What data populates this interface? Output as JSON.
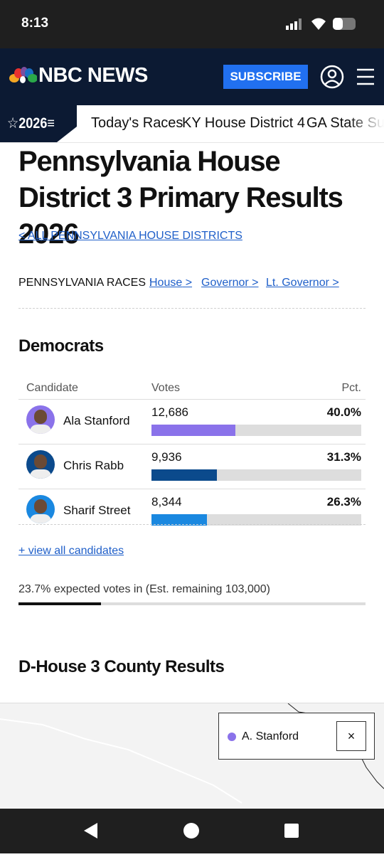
{
  "status_bar": {
    "time": "8:13"
  },
  "header": {
    "logo": "NBC NEWS",
    "subscribe": "SUBSCRIBE"
  },
  "nav": {
    "badge": "2026",
    "items": [
      "Today's Races",
      "KY House District 4",
      "GA State Sup"
    ]
  },
  "title": "Pennsylvania House District 3 Primary Results 2026",
  "back_link": "ALL PENNSYLVANIA HOUSE DISTRICTS",
  "races": {
    "label": "PENNSYLVANIA RACES :",
    "links": [
      "House",
      "Governor",
      "Lt. Governor"
    ]
  },
  "results": {
    "heading": "Democrats",
    "columns": [
      "Candidate",
      "Votes",
      "Pct."
    ],
    "candidates": [
      {
        "name": "Ala Stanford",
        "votes": "12,686",
        "pct": 40.0,
        "pct_label": "40.0%",
        "color": "#8a72ea"
      },
      {
        "name": "Chris Rabb",
        "votes": "9,936",
        "pct": 31.3,
        "pct_label": "31.3%",
        "color": "#0b4a8c"
      },
      {
        "name": "Sharif Street",
        "votes": "8,344",
        "pct": 26.3,
        "pct_label": "26.3%",
        "color": "#1a88e0"
      }
    ],
    "view_all": "+ view all candidates",
    "expected": "23.7% expected votes in (Est. remaining 103,000)",
    "expected_pct": 23.7
  },
  "county": {
    "heading": "D-House 3 County Results",
    "legend": "A. Stanford",
    "close": "×"
  }
}
